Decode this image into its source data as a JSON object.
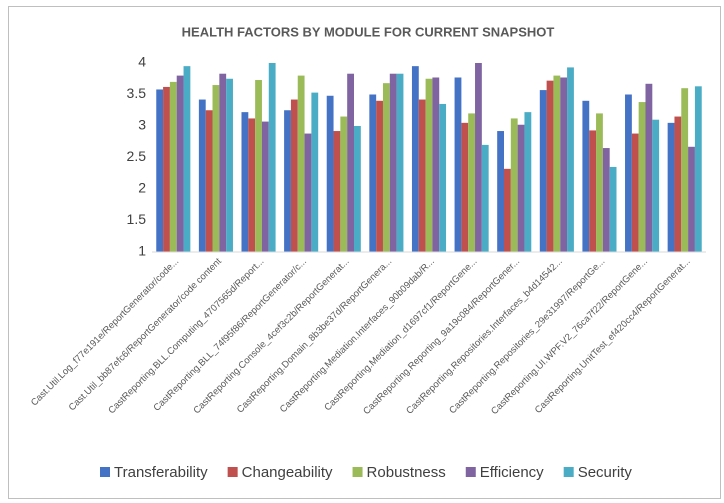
{
  "chart_data": {
    "type": "bar",
    "title": "HEALTH FACTORS BY MODULE FOR CURRENT SNAPSHOT",
    "categories": [
      "Cast.Util.Log_f77e191e/ReportGenerator/code...",
      "Cast.Util_bb87efc6/ReportGenerator/code content",
      "CastReporting.BLL.Computing_4707565d/Report...",
      "CastReporting.BLL_74f95f86/ReportGenerator/c...",
      "CastReporting.Console_4cef3c2b/ReportGenerat...",
      "CastReporting.Domain_8b3be37d/ReportGenera...",
      "CastReporting.Mediation.Interfaces_90b09dab/R...",
      "CastReporting.Mediation_d1697cf1/ReportGene...",
      "CastReporting.Reporting_9a19c084/ReportGener...",
      "CastReporting.Repositories.Interfaces_b4d14542...",
      "CastReporting.Repositories_29e31997/ReportGe...",
      "CastReporting.UI.WPF.V2_76ca7f22/ReportGene...",
      "CastReporting.UnitTest_ef420cc4/ReportGenerat..."
    ],
    "series": [
      {
        "name": "Transferability",
        "color": "#4472c4",
        "values": [
          3.58,
          3.42,
          3.22,
          3.25,
          3.48,
          3.5,
          3.95,
          3.77,
          2.92,
          3.57,
          3.4,
          3.5,
          3.05
        ]
      },
      {
        "name": "Changeability",
        "color": "#c0504d",
        "values": [
          3.62,
          3.25,
          3.12,
          3.42,
          2.92,
          3.4,
          3.42,
          3.05,
          2.32,
          3.72,
          2.93,
          2.88,
          3.15
        ]
      },
      {
        "name": "Robustness",
        "color": "#9bbb59",
        "values": [
          3.7,
          3.65,
          3.73,
          3.8,
          3.15,
          3.68,
          3.75,
          3.2,
          3.12,
          3.8,
          3.2,
          3.38,
          3.6
        ]
      },
      {
        "name": "Efficiency",
        "color": "#8064a2",
        "values": [
          3.8,
          3.83,
          3.07,
          2.88,
          3.83,
          3.83,
          3.77,
          4.0,
          3.02,
          3.77,
          2.65,
          3.67,
          2.67
        ]
      },
      {
        "name": "Security",
        "color": "#4bacc6",
        "values": [
          3.95,
          3.75,
          4.0,
          3.53,
          3.0,
          3.83,
          3.35,
          2.7,
          3.22,
          3.93,
          2.35,
          3.1,
          3.63
        ]
      }
    ],
    "ylim": [
      1,
      4
    ],
    "yticks": [
      1,
      1.5,
      2,
      2.5,
      3,
      3.5,
      4
    ],
    "grid": false
  }
}
